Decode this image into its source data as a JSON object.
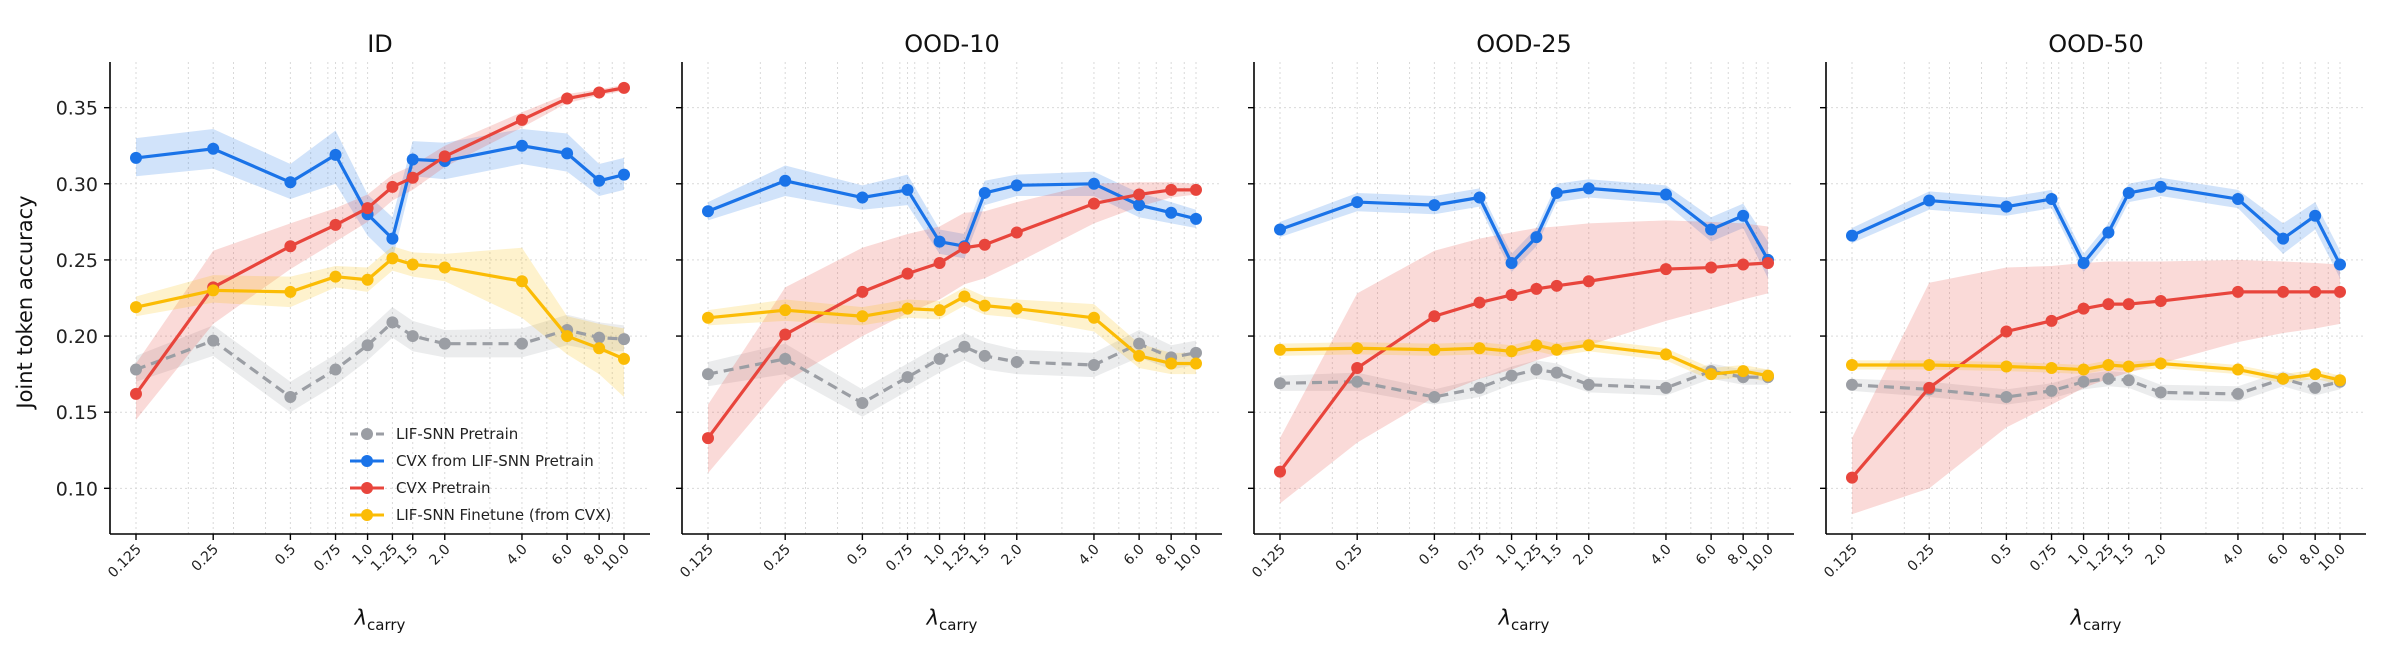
{
  "figure": {
    "ylabel": "Joint token accuracy",
    "xlabel_main": "λ",
    "xlabel_sub": "carry",
    "legend_placement": "lower-right of first panel"
  },
  "chart_data": [
    {
      "type": "line",
      "title": "ID",
      "xscale": "log",
      "x": [
        0.125,
        0.25,
        0.5,
        0.75,
        1.0,
        1.25,
        1.5,
        2.0,
        4.0,
        6.0,
        8.0,
        10.0
      ],
      "xtick_labels": [
        "0.125",
        "0.25",
        "0.5",
        "0.75",
        "1.0",
        "1.25",
        "1.5",
        "2.0",
        "4.0",
        "6.0",
        "8.0",
        "10.0"
      ],
      "ylim": [
        0.07,
        0.38
      ],
      "yticks": [
        "0.10",
        "0.15",
        "0.20",
        "0.25",
        "0.30",
        "0.35"
      ],
      "grid": true,
      "series": [
        {
          "name": "LIF-SNN Pretrain",
          "color": "#9b9ea4",
          "dashed": true,
          "values": [
            0.178,
            0.197,
            0.16,
            0.178,
            0.194,
            0.209,
            0.2,
            0.195,
            0.195,
            0.204,
            0.199,
            0.198
          ],
          "lower": [
            0.17,
            0.187,
            0.15,
            0.168,
            0.184,
            0.199,
            0.19,
            0.186,
            0.186,
            0.194,
            0.19,
            0.19
          ],
          "upper": [
            0.187,
            0.207,
            0.17,
            0.188,
            0.204,
            0.219,
            0.21,
            0.204,
            0.205,
            0.214,
            0.209,
            0.207
          ]
        },
        {
          "name": "CVX from LIF-SNN Pretrain",
          "color": "#1a73e8",
          "values": [
            0.317,
            0.323,
            0.301,
            0.319,
            0.28,
            0.264,
            0.316,
            0.315,
            0.325,
            0.32,
            0.302,
            0.306
          ],
          "lower": [
            0.305,
            0.31,
            0.29,
            0.3,
            0.266,
            0.25,
            0.305,
            0.303,
            0.313,
            0.308,
            0.292,
            0.296
          ],
          "upper": [
            0.33,
            0.336,
            0.313,
            0.335,
            0.293,
            0.278,
            0.328,
            0.327,
            0.336,
            0.333,
            0.313,
            0.317
          ]
        },
        {
          "name": "CVX Pretrain",
          "color": "#e8453c",
          "values": [
            0.162,
            0.232,
            0.259,
            0.273,
            0.284,
            0.298,
            0.304,
            0.318,
            0.342,
            0.356,
            0.36,
            0.363
          ],
          "lower": [
            0.145,
            0.208,
            0.244,
            0.262,
            0.275,
            0.289,
            0.296,
            0.311,
            0.337,
            0.353,
            0.358,
            0.361
          ],
          "upper": [
            0.182,
            0.256,
            0.274,
            0.284,
            0.293,
            0.306,
            0.312,
            0.325,
            0.347,
            0.359,
            0.362,
            0.365
          ]
        },
        {
          "name": "LIF-SNN Finetune (from CVX)",
          "color": "#fbbc05",
          "values": [
            0.219,
            0.23,
            0.229,
            0.239,
            0.237,
            0.251,
            0.247,
            0.245,
            0.236,
            0.2,
            0.192,
            0.185
          ],
          "lower": [
            0.213,
            0.222,
            0.219,
            0.232,
            0.229,
            0.243,
            0.239,
            0.236,
            0.212,
            0.188,
            0.175,
            0.16
          ],
          "upper": [
            0.226,
            0.24,
            0.239,
            0.246,
            0.245,
            0.259,
            0.255,
            0.254,
            0.258,
            0.213,
            0.208,
            0.205
          ]
        }
      ]
    },
    {
      "type": "line",
      "title": "OOD-10",
      "xscale": "log",
      "x": [
        0.125,
        0.25,
        0.5,
        0.75,
        1.0,
        1.25,
        1.5,
        2.0,
        4.0,
        6.0,
        8.0,
        10.0
      ],
      "xtick_labels": [
        "0.125",
        "0.25",
        "0.5",
        "0.75",
        "1.0",
        "1.25",
        "1.5",
        "2.0",
        "4.0",
        "6.0",
        "8.0",
        "10.0"
      ],
      "ylim": [
        0.07,
        0.38
      ],
      "grid": true,
      "series": [
        {
          "name": "LIF-SNN Pretrain",
          "color": "#9b9ea4",
          "dashed": true,
          "values": [
            0.175,
            0.185,
            0.156,
            0.173,
            0.185,
            0.193,
            0.187,
            0.183,
            0.181,
            0.195,
            0.186,
            0.189
          ],
          "lower": [
            0.167,
            0.175,
            0.147,
            0.164,
            0.176,
            0.184,
            0.178,
            0.175,
            0.173,
            0.186,
            0.178,
            0.181
          ],
          "upper": [
            0.183,
            0.195,
            0.165,
            0.182,
            0.194,
            0.202,
            0.196,
            0.191,
            0.189,
            0.204,
            0.194,
            0.197
          ]
        },
        {
          "name": "CVX from LIF-SNN Pretrain",
          "color": "#1a73e8",
          "values": [
            0.282,
            0.302,
            0.291,
            0.296,
            0.262,
            0.259,
            0.294,
            0.299,
            0.3,
            0.286,
            0.281,
            0.277
          ],
          "lower": [
            0.276,
            0.292,
            0.283,
            0.286,
            0.254,
            0.251,
            0.286,
            0.292,
            0.292,
            0.278,
            0.274,
            0.271
          ],
          "upper": [
            0.288,
            0.312,
            0.299,
            0.306,
            0.27,
            0.267,
            0.302,
            0.306,
            0.308,
            0.294,
            0.288,
            0.283
          ]
        },
        {
          "name": "CVX Pretrain",
          "color": "#e8453c",
          "values": [
            0.133,
            0.201,
            0.229,
            0.241,
            0.248,
            0.258,
            0.26,
            0.268,
            0.287,
            0.293,
            0.296,
            0.296
          ],
          "lower": [
            0.11,
            0.17,
            0.2,
            0.215,
            0.224,
            0.234,
            0.238,
            0.248,
            0.274,
            0.285,
            0.291,
            0.293
          ],
          "upper": [
            0.155,
            0.232,
            0.258,
            0.267,
            0.272,
            0.281,
            0.282,
            0.288,
            0.3,
            0.301,
            0.301,
            0.3
          ]
        },
        {
          "name": "LIF-SNN Finetune (from CVX)",
          "color": "#fbbc05",
          "values": [
            0.212,
            0.217,
            0.213,
            0.218,
            0.217,
            0.226,
            0.22,
            0.218,
            0.212,
            0.187,
            0.182,
            0.182
          ],
          "lower": [
            0.207,
            0.21,
            0.207,
            0.212,
            0.211,
            0.22,
            0.214,
            0.212,
            0.203,
            0.179,
            0.175,
            0.175
          ],
          "upper": [
            0.217,
            0.224,
            0.219,
            0.224,
            0.223,
            0.232,
            0.226,
            0.224,
            0.221,
            0.195,
            0.189,
            0.189
          ]
        }
      ]
    },
    {
      "type": "line",
      "title": "OOD-25",
      "xscale": "log",
      "x": [
        0.125,
        0.25,
        0.5,
        0.75,
        1.0,
        1.25,
        1.5,
        2.0,
        4.0,
        6.0,
        8.0,
        10.0
      ],
      "xtick_labels": [
        "0.125",
        "0.25",
        "0.5",
        "0.75",
        "1.0",
        "1.25",
        "1.5",
        "2.0",
        "4.0",
        "6.0",
        "8.0",
        "10.0"
      ],
      "ylim": [
        0.07,
        0.38
      ],
      "grid": true,
      "series": [
        {
          "name": "LIF-SNN Pretrain",
          "color": "#9b9ea4",
          "dashed": true,
          "values": [
            0.169,
            0.17,
            0.16,
            0.166,
            0.174,
            0.178,
            0.176,
            0.168,
            0.166,
            0.177,
            0.173,
            0.173
          ],
          "lower": [
            0.164,
            0.164,
            0.155,
            0.16,
            0.168,
            0.172,
            0.17,
            0.163,
            0.161,
            0.172,
            0.168,
            0.168
          ],
          "upper": [
            0.174,
            0.176,
            0.165,
            0.172,
            0.18,
            0.184,
            0.182,
            0.173,
            0.171,
            0.182,
            0.178,
            0.178
          ]
        },
        {
          "name": "CVX from LIF-SNN Pretrain",
          "color": "#1a73e8",
          "values": [
            0.27,
            0.288,
            0.286,
            0.291,
            0.248,
            0.265,
            0.294,
            0.297,
            0.293,
            0.27,
            0.279,
            0.25
          ],
          "lower": [
            0.265,
            0.282,
            0.28,
            0.285,
            0.242,
            0.259,
            0.288,
            0.291,
            0.287,
            0.262,
            0.271,
            0.238
          ],
          "upper": [
            0.275,
            0.294,
            0.292,
            0.297,
            0.254,
            0.271,
            0.3,
            0.303,
            0.299,
            0.278,
            0.287,
            0.262
          ]
        },
        {
          "name": "CVX Pretrain",
          "color": "#e8453c",
          "values": [
            0.111,
            0.179,
            0.213,
            0.222,
            0.227,
            0.231,
            0.233,
            0.236,
            0.244,
            0.245,
            0.247,
            0.248
          ],
          "lower": [
            0.09,
            0.13,
            0.16,
            0.172,
            0.178,
            0.184,
            0.188,
            0.194,
            0.21,
            0.218,
            0.224,
            0.228
          ],
          "upper": [
            0.133,
            0.228,
            0.256,
            0.264,
            0.268,
            0.271,
            0.272,
            0.274,
            0.276,
            0.275,
            0.274,
            0.272
          ]
        },
        {
          "name": "LIF-SNN Finetune (from CVX)",
          "color": "#fbbc05",
          "values": [
            0.191,
            0.192,
            0.191,
            0.192,
            0.19,
            0.194,
            0.191,
            0.194,
            0.188,
            0.175,
            0.177,
            0.174
          ],
          "lower": [
            0.187,
            0.188,
            0.187,
            0.188,
            0.186,
            0.19,
            0.187,
            0.19,
            0.184,
            0.171,
            0.173,
            0.17
          ],
          "upper": [
            0.195,
            0.196,
            0.195,
            0.196,
            0.194,
            0.198,
            0.195,
            0.198,
            0.192,
            0.179,
            0.181,
            0.178
          ]
        }
      ]
    },
    {
      "type": "line",
      "title": "OOD-50",
      "xscale": "log",
      "x": [
        0.125,
        0.25,
        0.5,
        0.75,
        1.0,
        1.25,
        1.5,
        2.0,
        4.0,
        6.0,
        8.0,
        10.0
      ],
      "xtick_labels": [
        "0.125",
        "0.25",
        "0.5",
        "0.75",
        "1.0",
        "1.25",
        "1.5",
        "2.0",
        "4.0",
        "6.0",
        "8.0",
        "10.0"
      ],
      "ylim": [
        0.07,
        0.38
      ],
      "grid": true,
      "series": [
        {
          "name": "LIF-SNN Pretrain",
          "color": "#9b9ea4",
          "dashed": true,
          "values": [
            0.168,
            0.165,
            0.16,
            0.164,
            0.17,
            0.172,
            0.171,
            0.163,
            0.162,
            0.172,
            0.166,
            0.17
          ],
          "lower": [
            0.164,
            0.16,
            0.155,
            0.159,
            0.165,
            0.167,
            0.166,
            0.158,
            0.157,
            0.167,
            0.161,
            0.165
          ],
          "upper": [
            0.172,
            0.17,
            0.165,
            0.169,
            0.175,
            0.177,
            0.176,
            0.168,
            0.167,
            0.177,
            0.171,
            0.175
          ]
        },
        {
          "name": "CVX from LIF-SNN Pretrain",
          "color": "#1a73e8",
          "values": [
            0.266,
            0.289,
            0.285,
            0.29,
            0.248,
            0.268,
            0.294,
            0.298,
            0.29,
            0.264,
            0.279,
            0.247
          ],
          "lower": [
            0.261,
            0.283,
            0.279,
            0.284,
            0.242,
            0.262,
            0.288,
            0.292,
            0.284,
            0.254,
            0.27,
            0.238
          ],
          "upper": [
            0.271,
            0.295,
            0.291,
            0.296,
            0.254,
            0.274,
            0.3,
            0.304,
            0.296,
            0.274,
            0.288,
            0.256
          ]
        },
        {
          "name": "CVX Pretrain",
          "color": "#e8453c",
          "values": [
            0.107,
            0.166,
            0.203,
            0.21,
            0.218,
            0.221,
            0.221,
            0.223,
            0.229,
            0.229,
            0.229,
            0.229
          ],
          "lower": [
            0.083,
            0.1,
            0.14,
            0.155,
            0.166,
            0.172,
            0.176,
            0.182,
            0.196,
            0.202,
            0.205,
            0.208
          ],
          "upper": [
            0.133,
            0.235,
            0.245,
            0.246,
            0.248,
            0.249,
            0.249,
            0.249,
            0.25,
            0.249,
            0.248,
            0.247
          ]
        },
        {
          "name": "LIF-SNN Finetune (from CVX)",
          "color": "#fbbc05",
          "values": [
            0.181,
            0.181,
            0.18,
            0.179,
            0.178,
            0.181,
            0.18,
            0.182,
            0.178,
            0.172,
            0.175,
            0.171
          ],
          "lower": [
            0.178,
            0.178,
            0.177,
            0.176,
            0.175,
            0.178,
            0.177,
            0.179,
            0.175,
            0.169,
            0.172,
            0.168
          ],
          "upper": [
            0.184,
            0.184,
            0.183,
            0.182,
            0.181,
            0.184,
            0.183,
            0.185,
            0.181,
            0.175,
            0.178,
            0.174
          ]
        }
      ]
    }
  ]
}
